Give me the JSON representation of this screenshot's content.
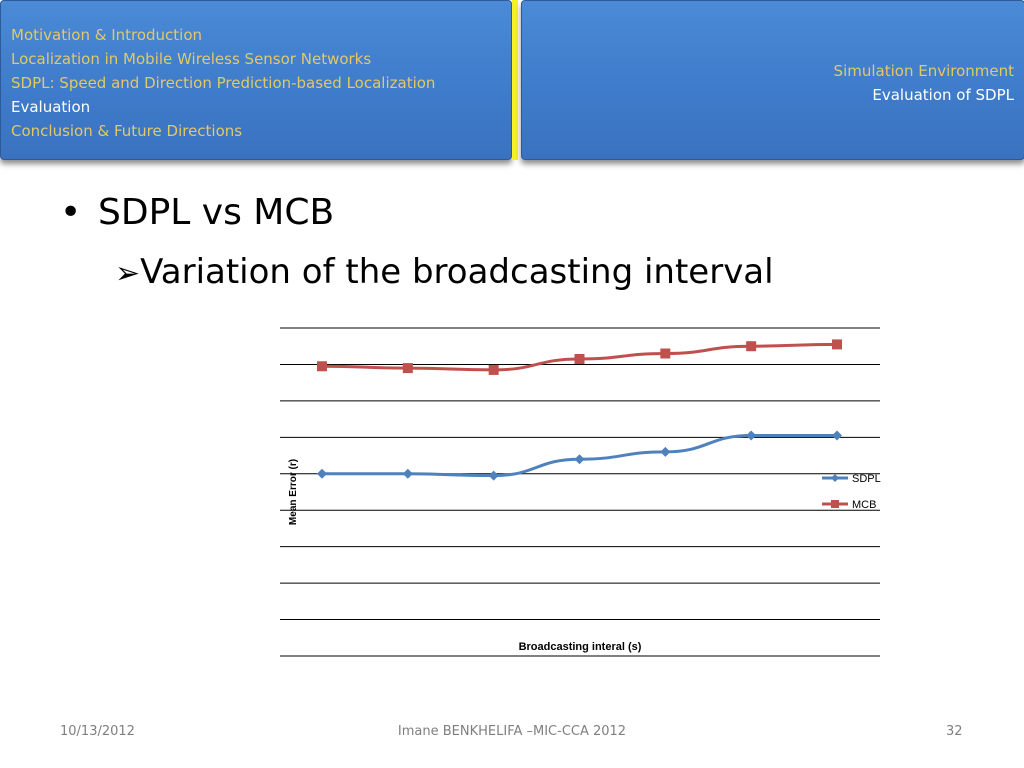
{
  "header": {
    "sections": [
      {
        "label": "Motivation & Introduction",
        "active": false
      },
      {
        "label": "Localization in  Mobile Wireless Sensor Networks",
        "active": false
      },
      {
        "label": "SDPL: Speed and Direction Prediction-based Localization",
        "active": false
      },
      {
        "label": "Evaluation",
        "active": true
      },
      {
        "label": "Conclusion & Future Directions",
        "active": false
      }
    ],
    "subsections": [
      {
        "label": "Simulation Environment",
        "active": false
      },
      {
        "label": "Evaluation of SDPL",
        "active": true
      }
    ]
  },
  "content": {
    "bullet": "SDPL vs MCB",
    "sub_bullet": "Variation of the broadcasting interval"
  },
  "chart_data": {
    "type": "line",
    "title": "",
    "xlabel": "Broadcasting interal (s)",
    "ylabel": "Mean Error (r)",
    "ylim": [
      0,
      9
    ],
    "grid": true,
    "legend_position": "right",
    "series": [
      {
        "name": "SDPL",
        "color": "#4f81bd",
        "marker": "diamond",
        "values": [
          5.0,
          5.0,
          4.95,
          5.4,
          5.6,
          6.05,
          6.05
        ]
      },
      {
        "name": "MCB",
        "color": "#c0504d",
        "marker": "square",
        "values": [
          7.95,
          7.9,
          7.85,
          8.15,
          8.3,
          8.5,
          8.55
        ]
      }
    ]
  },
  "footer": {
    "date": "10/13/2012",
    "author": "Imane BENKHELIFA –MIC-CCA 2012",
    "page": "32"
  },
  "colors": {
    "header_blue": "#3f7ccb",
    "nav_gold": "#e3c867",
    "divider_yellow": "#f6f12a"
  }
}
